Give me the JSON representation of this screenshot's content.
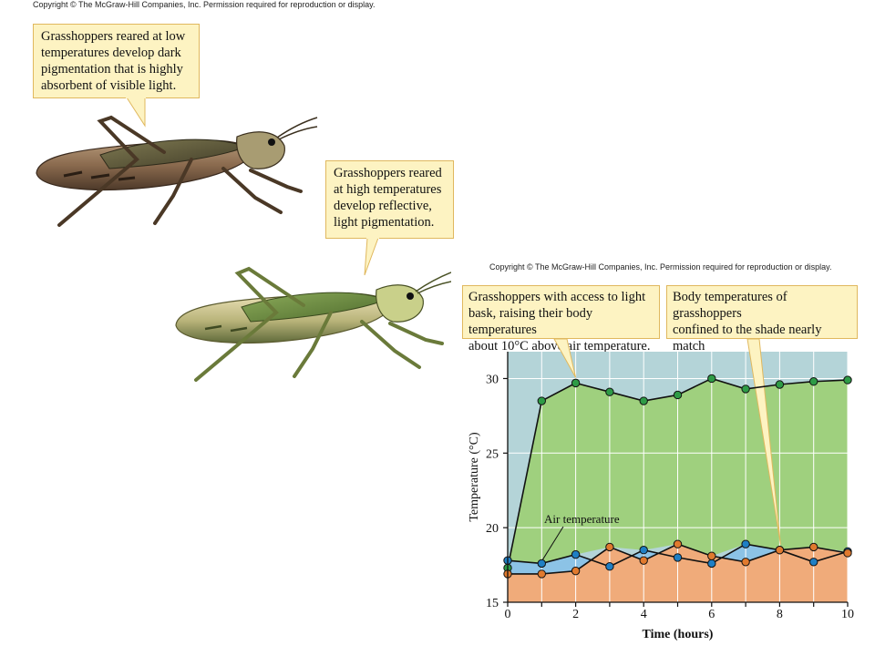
{
  "copyright": {
    "top": "Copyright © The McGraw-Hill Companies, Inc. Permission required for reproduction or display.",
    "chart": "Copyright © The McGraw-Hill Companies, Inc. Permission required for reproduction or display."
  },
  "callouts": {
    "low": "Grasshoppers reared at low\ntemperatures develop dark\npigmentation that is highly\nabsorbent of visible light.",
    "high": "Grasshoppers reared\nat high temperatures\ndevelop reflective,\nlight pigmentation.",
    "bask": "Grasshoppers with access to light\nbask, raising their body temperatures\nabout 10°C above air temperature.",
    "shade": "Body temperatures of grasshoppers\nconfined to the shade nearly match\nair temperature."
  },
  "illustrations": {
    "dark_grasshopper": "grasshopper-dark-pigmentation",
    "light_grasshopper": "grasshopper-light-pigmentation"
  },
  "chart_data": {
    "type": "line",
    "title": "",
    "xlabel": "Time (hours)",
    "ylabel": "Temperature (°C)",
    "xlim": [
      0,
      10
    ],
    "ylim": [
      15,
      31.8
    ],
    "x_ticks": [
      0,
      2,
      4,
      6,
      8,
      10
    ],
    "y_ticks": [
      15,
      20,
      25,
      30
    ],
    "grid": true,
    "annotation": "Air temperature",
    "x": [
      0,
      1,
      2,
      3,
      4,
      5,
      6,
      7,
      8,
      9,
      10
    ],
    "series": [
      {
        "key": "bask",
        "values": [
          17.3,
          28.5,
          29.7,
          29.1,
          28.5,
          28.9,
          30.0,
          29.3,
          29.6,
          29.8,
          29.9
        ],
        "color": "#2e9b46",
        "fill": "#9fd07e"
      },
      {
        "key": "air",
        "name": "Air temperature",
        "values": [
          17.8,
          17.6,
          18.2,
          17.4,
          18.5,
          18.0,
          17.6,
          18.9,
          18.5,
          17.7,
          18.4
        ],
        "color": "#1f7fc4",
        "fill": "#8cc3e6"
      },
      {
        "key": "shade",
        "values": [
          16.9,
          16.9,
          17.1,
          18.7,
          17.8,
          18.9,
          18.1,
          17.7,
          18.5,
          18.7,
          18.3
        ],
        "color": "#e07a2e",
        "fill": "#f0ab7a"
      }
    ],
    "colors": {
      "plot_background": "#b4d4d8",
      "grid": "#ffffff",
      "axis": "#111111"
    }
  }
}
